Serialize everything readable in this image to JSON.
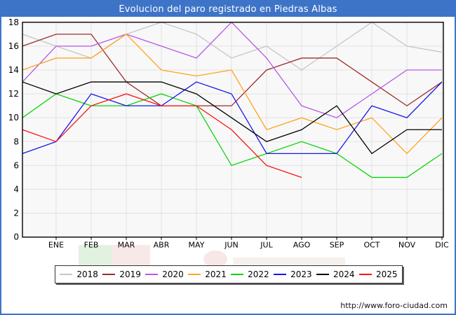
{
  "title_bar": {
    "text": "Evolucion del paro registrado en Piedras Albas",
    "bg_color": "#3d74c8",
    "text_color": "#ffffff"
  },
  "footer": {
    "url": "http://www.foro-ciudad.com"
  },
  "chart_data": {
    "type": "line",
    "title": "Evolucion del paro registrado en Piedras Albas",
    "xlabel": "",
    "ylabel": "",
    "x_labels": [
      "ENE",
      "FEB",
      "MAR",
      "ABR",
      "MAY",
      "JUN",
      "JUL",
      "AGO",
      "SEP",
      "OCT",
      "NOV",
      "DIC"
    ],
    "y_ticks": [
      0,
      2,
      4,
      6,
      8,
      10,
      12,
      14,
      16,
      18
    ],
    "ylim": [
      0,
      18
    ],
    "grid": true,
    "legend_position": "bottom",
    "note": "Each series has an extra starting vertex drawn on the plot's left edge, one half-slot before the ENE gridline. 2025 data ends at AGO.",
    "series": [
      {
        "name": "2018",
        "color": "#c6c6c6",
        "values": [
          17,
          16,
          15,
          17,
          18,
          17,
          15,
          16,
          14,
          16,
          18,
          16,
          15.5
        ]
      },
      {
        "name": "2019",
        "color": "#9e2b2b",
        "values": [
          16,
          17,
          17,
          13,
          11,
          11,
          11,
          14,
          15,
          15,
          13,
          11,
          13
        ]
      },
      {
        "name": "2020",
        "color": "#b758e8",
        "values": [
          13,
          16,
          16,
          17,
          16,
          15,
          18,
          15,
          11,
          10,
          12,
          14,
          14
        ]
      },
      {
        "name": "2021",
        "color": "#ffa41e",
        "values": [
          14,
          15,
          15,
          17,
          14,
          13.5,
          14,
          9,
          10,
          9,
          10,
          7,
          10
        ]
      },
      {
        "name": "2022",
        "color": "#0ad50a",
        "values": [
          10,
          12,
          11,
          11,
          12,
          11,
          6,
          7,
          8,
          7,
          5,
          5,
          7
        ]
      },
      {
        "name": "2023",
        "color": "#1616e8",
        "values": [
          7,
          8,
          12,
          11,
          11,
          13,
          12,
          7,
          7,
          7,
          11,
          10,
          13
        ]
      },
      {
        "name": "2024",
        "color": "#000000",
        "values": [
          13,
          12,
          13,
          13,
          13,
          12,
          10,
          8,
          9,
          11,
          7,
          9,
          9
        ]
      },
      {
        "name": "2025",
        "color": "#f81414",
        "values": [
          9,
          8,
          11,
          12,
          11,
          11,
          9,
          6,
          5
        ]
      }
    ]
  }
}
